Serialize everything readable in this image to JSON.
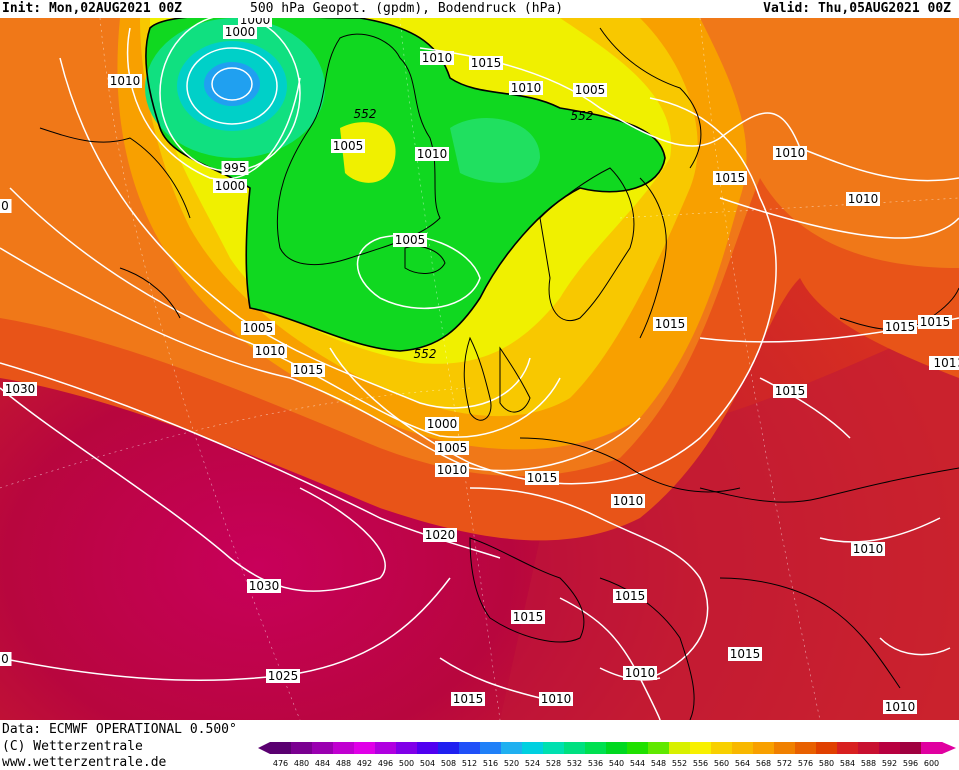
{
  "header": {
    "init": "Init: Mon,02AUG2021 00Z",
    "title": "500 hPa Geopot. (gpdm), Bodendruck (hPa)",
    "valid": "Valid: Thu,05AUG2021 00Z"
  },
  "footer": {
    "data_line": "Data: ECMWF OPERATIONAL 0.500°",
    "copyright": "(C) Wetterzentrale",
    "url": "www.wetterzentrale.de"
  },
  "legend": {
    "ticks": [
      "476",
      "480",
      "484",
      "488",
      "492",
      "496",
      "500",
      "504",
      "508",
      "512",
      "516",
      "520",
      "524",
      "528",
      "532",
      "536",
      "540",
      "544",
      "548",
      "552",
      "556",
      "560",
      "564",
      "568",
      "572",
      "576",
      "580",
      "584",
      "588",
      "592",
      "596",
      "600"
    ],
    "colors": [
      "#5a0070",
      "#7a0090",
      "#9a00b0",
      "#c000d0",
      "#e000e8",
      "#b000e0",
      "#8000e8",
      "#5000f0",
      "#2020f0",
      "#2050f8",
      "#2080f8",
      "#20b0f0",
      "#00d0e0",
      "#00e0b0",
      "#00e080",
      "#00e050",
      "#00d820",
      "#20e000",
      "#60e800",
      "#d8f000",
      "#f8f000",
      "#f8d000",
      "#f8b800",
      "#f8a000",
      "#f08000",
      "#e86000",
      "#e04000",
      "#d82020",
      "#c81030",
      "#b80040",
      "#a00040",
      "#e000a0"
    ]
  },
  "pressure_labels": [
    {
      "text": "1000",
      "kind": "box"
    },
    {
      "text": "1000",
      "kind": "box"
    },
    {
      "text": "1010",
      "kind": "box"
    },
    {
      "text": "1010",
      "kind": "box"
    },
    {
      "text": "1015",
      "kind": "box"
    },
    {
      "text": "1010",
      "kind": "box"
    },
    {
      "text": "1005",
      "kind": "box"
    },
    {
      "text": "1005",
      "kind": "box"
    },
    {
      "text": "1010",
      "kind": "box"
    },
    {
      "text": "995",
      "kind": "box"
    },
    {
      "text": "1000",
      "kind": "box"
    },
    {
      "text": "1010",
      "kind": "box"
    },
    {
      "text": "1015",
      "kind": "box"
    },
    {
      "text": "1010",
      "kind": "box"
    },
    {
      "text": "1005",
      "kind": "box"
    },
    {
      "text": "1015",
      "kind": "box"
    },
    {
      "text": "1005",
      "kind": "box"
    },
    {
      "text": "1010",
      "kind": "box"
    },
    {
      "text": "1015",
      "kind": "box"
    },
    {
      "text": "1015",
      "kind": "box"
    },
    {
      "text": "1030",
      "kind": "box"
    },
    {
      "text": "1000",
      "kind": "box"
    },
    {
      "text": "1005",
      "kind": "box"
    },
    {
      "text": "1010",
      "kind": "box"
    },
    {
      "text": "1015",
      "kind": "box"
    },
    {
      "text": "1015",
      "kind": "box"
    },
    {
      "text": "1010",
      "kind": "box"
    },
    {
      "text": "1020",
      "kind": "box"
    },
    {
      "text": "1030",
      "kind": "box"
    },
    {
      "text": "1015",
      "kind": "box"
    },
    {
      "text": "1015",
      "kind": "box"
    },
    {
      "text": "1010",
      "kind": "box"
    },
    {
      "text": "1025",
      "kind": "box"
    },
    {
      "text": "1015",
      "kind": "box"
    },
    {
      "text": "1010",
      "kind": "box"
    },
    {
      "text": "1010",
      "kind": "box"
    },
    {
      "text": "1010",
      "kind": "box"
    },
    {
      "text": "1015",
      "kind": "box"
    },
    {
      "text": "1010",
      "kind": "box"
    },
    {
      "text": "1015",
      "kind": "box"
    },
    {
      "text": "101",
      "kind": "box"
    },
    {
      "text": "0",
      "kind": "box"
    },
    {
      "text": "0",
      "kind": "box"
    }
  ],
  "geopot_labels": [
    "552",
    "552",
    "552"
  ],
  "map_legend_title": "500 hPa Geopot. (gpdm)"
}
